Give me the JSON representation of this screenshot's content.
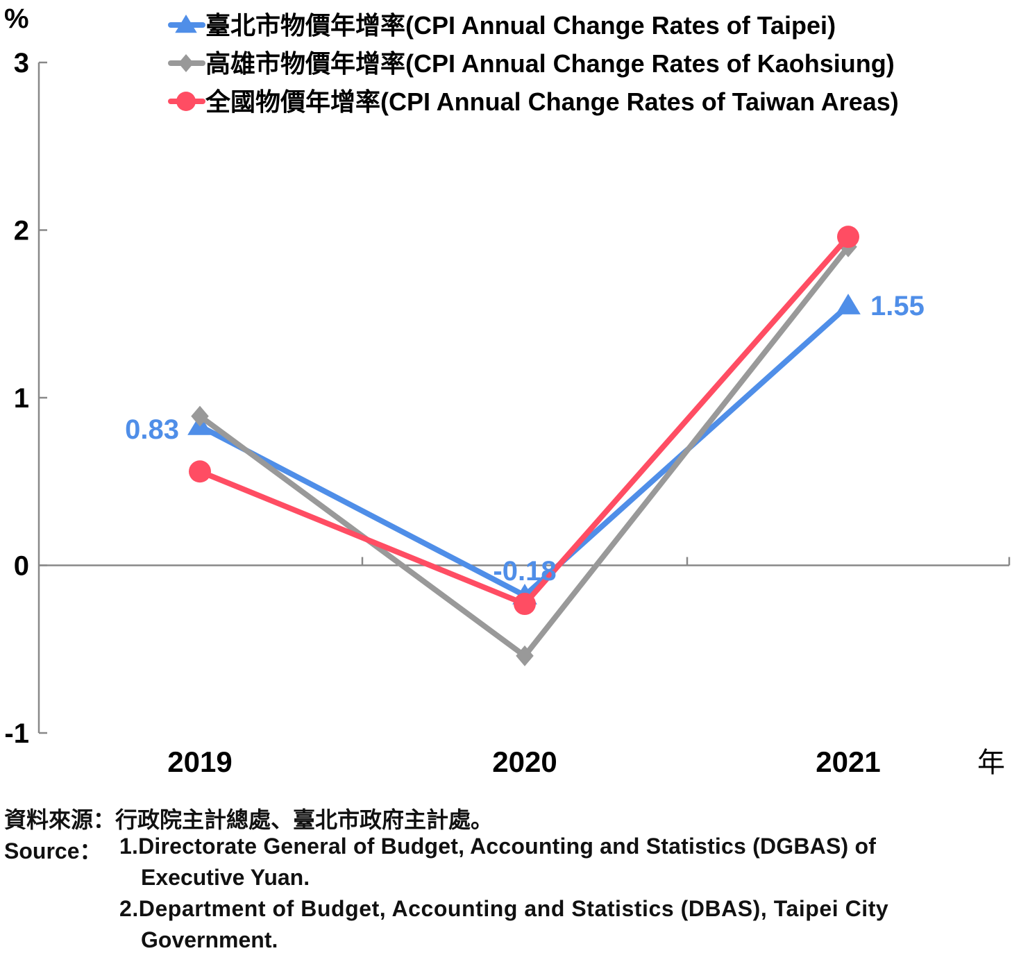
{
  "chart_data": {
    "type": "line",
    "y_unit": "%",
    "x_unit": "年",
    "categories": [
      "2019",
      "2020",
      "2021"
    ],
    "ylim": [
      -1,
      3
    ],
    "yticks": [
      "-1",
      "0",
      "1",
      "2",
      "3"
    ],
    "grid": false,
    "legend_position": "top-right",
    "series": [
      {
        "name": "臺北市物價年增率(CPI Annual Change Rates of Taipei)",
        "values": [
          0.83,
          -0.18,
          1.55
        ],
        "color": "#4f8ee8",
        "marker": "triangle",
        "labels": [
          "0.83",
          "-0.18",
          "1.55"
        ]
      },
      {
        "name": "高雄市物價年增率(CPI Annual Change Rates of Kaohsiung)",
        "values": [
          0.89,
          -0.54,
          1.9
        ],
        "color": "#999999",
        "marker": "diamond"
      },
      {
        "name": "全國物價年增率(CPI Annual Change Rates of Taiwan Areas)",
        "values": [
          0.56,
          -0.23,
          1.96
        ],
        "color": "#ff4d63",
        "marker": "circle"
      }
    ]
  },
  "source": {
    "zh": "資料來源：行政院主計總處、臺北市政府主計處。",
    "en_label": "Source：",
    "en_item1": "1.Directorate General of Budget, Accounting and Statistics (DGBAS) of",
    "en_item1_cont": "Executive Yuan.",
    "en_item2": "2.Department of Budget, Accounting and Statistics (DBAS), Taipei City",
    "en_item2_cont": "Government."
  }
}
